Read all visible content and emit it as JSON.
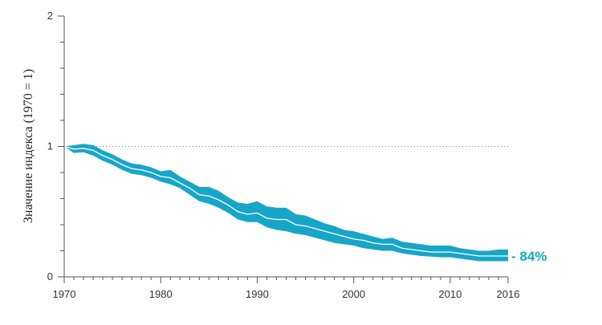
{
  "chart_data": {
    "type": "area",
    "title": "",
    "ylabel": "Значение индекса (1970 = 1)",
    "xlabel": "",
    "xlim": [
      1970,
      2016
    ],
    "ylim": [
      0,
      2
    ],
    "x_ticks": [
      "1970",
      "1980",
      "1990",
      "2000",
      "2010",
      "2016"
    ],
    "y_ticks": [
      "0",
      "1",
      "2"
    ],
    "baseline_value": 1,
    "end_annotation": "- 84%",
    "colors": {
      "band": "#17a6c8",
      "line": "#ffffff",
      "axis": "#555555",
      "baseline": "#888888"
    },
    "series": [
      {
        "x": [
          1970,
          1971,
          1972,
          1973,
          1974,
          1975,
          1976,
          1977,
          1978,
          1979,
          1980,
          1981,
          1982,
          1983,
          1984,
          1985,
          1986,
          1987,
          1988,
          1989,
          1990,
          1991,
          1992,
          1993,
          1994,
          1995,
          1996,
          1997,
          1998,
          1999,
          2000,
          2001,
          2002,
          2003,
          2004,
          2005,
          2006,
          2007,
          2008,
          2009,
          2010,
          2011,
          2012,
          2013,
          2014,
          2015,
          2016
        ],
        "values": [
          1.0,
          0.98,
          0.985,
          0.97,
          0.93,
          0.9,
          0.86,
          0.83,
          0.82,
          0.8,
          0.77,
          0.76,
          0.72,
          0.68,
          0.63,
          0.62,
          0.59,
          0.55,
          0.5,
          0.48,
          0.49,
          0.45,
          0.44,
          0.44,
          0.4,
          0.39,
          0.37,
          0.35,
          0.33,
          0.31,
          0.29,
          0.28,
          0.26,
          0.25,
          0.25,
          0.22,
          0.21,
          0.2,
          0.19,
          0.19,
          0.19,
          0.18,
          0.17,
          0.16,
          0.16,
          0.16,
          0.16
        ],
        "upper": [
          1.0,
          1.01,
          1.02,
          1.01,
          0.97,
          0.94,
          0.9,
          0.87,
          0.86,
          0.84,
          0.81,
          0.82,
          0.77,
          0.73,
          0.69,
          0.69,
          0.66,
          0.61,
          0.57,
          0.56,
          0.58,
          0.54,
          0.53,
          0.53,
          0.48,
          0.47,
          0.44,
          0.41,
          0.39,
          0.36,
          0.35,
          0.33,
          0.31,
          0.29,
          0.3,
          0.27,
          0.26,
          0.25,
          0.24,
          0.24,
          0.24,
          0.22,
          0.21,
          0.2,
          0.2,
          0.21,
          0.21
        ],
        "lower": [
          1.0,
          0.95,
          0.955,
          0.93,
          0.89,
          0.86,
          0.82,
          0.79,
          0.78,
          0.76,
          0.73,
          0.71,
          0.68,
          0.63,
          0.58,
          0.56,
          0.53,
          0.49,
          0.44,
          0.42,
          0.42,
          0.38,
          0.36,
          0.35,
          0.33,
          0.32,
          0.3,
          0.28,
          0.26,
          0.25,
          0.24,
          0.22,
          0.21,
          0.2,
          0.2,
          0.18,
          0.17,
          0.16,
          0.155,
          0.15,
          0.15,
          0.14,
          0.13,
          0.12,
          0.12,
          0.12,
          0.12
        ]
      }
    ]
  }
}
